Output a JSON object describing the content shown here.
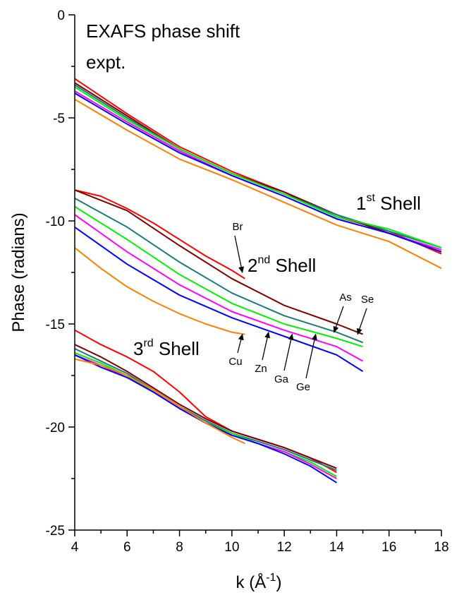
{
  "chart_data": {
    "type": "line",
    "title": "EXAFS phase shift",
    "subtitle": "expt.",
    "xlabel": "k (Å-1)",
    "xlabel_main": "k (Å",
    "xlabel_sup": "-1",
    "xlabel_end": ")",
    "ylabel": "Phase (radians)",
    "xlim": [
      4,
      18
    ],
    "ylim": [
      -25,
      0
    ],
    "x_ticks": [
      4,
      6,
      8,
      10,
      12,
      14,
      16,
      18
    ],
    "y_ticks": [
      0,
      -5,
      -10,
      -15,
      -20,
      -25
    ],
    "x_tick_labels": [
      "4",
      "6",
      "8",
      "10",
      "12",
      "14",
      "16",
      "18"
    ],
    "y_tick_labels": [
      "0",
      "-5",
      "-10",
      "-15",
      "-20",
      "-25"
    ],
    "grid": false,
    "element_colors": {
      "Br": "#ff0000",
      "Se": "#7b0000",
      "As": "#1a7a7a",
      "Ge": "#00ee00",
      "Ga": "#ff00ff",
      "Zn": "#0000ff",
      "Cu": "#ff8000"
    },
    "shells": [
      {
        "label": "1st Shell",
        "label_base": "1",
        "label_sup": "st",
        "label_rest": " Shell",
        "series": [
          {
            "element": "Br",
            "x": [
              4,
              6,
              8,
              10,
              12,
              14,
              16,
              18
            ],
            "y": [
              -3.1,
              -4.8,
              -6.4,
              -7.6,
              -8.6,
              -9.8,
              -10.5,
              -11.6
            ]
          },
          {
            "element": "Se",
            "x": [
              4,
              6,
              8,
              10,
              12,
              14,
              16,
              18
            ],
            "y": [
              -3.3,
              -4.9,
              -6.5,
              -7.7,
              -8.6,
              -9.7,
              -10.6,
              -11.5
            ]
          },
          {
            "element": "As",
            "x": [
              4,
              6,
              8,
              10,
              12,
              14,
              16,
              18
            ],
            "y": [
              -3.4,
              -5.0,
              -6.5,
              -7.7,
              -8.7,
              -9.7,
              -10.5,
              -11.3
            ]
          },
          {
            "element": "Ge",
            "x": [
              4,
              6,
              8,
              10,
              12,
              14,
              16,
              18
            ],
            "y": [
              -3.5,
              -5.1,
              -6.5,
              -7.7,
              -8.7,
              -9.8,
              -10.4,
              -11.3
            ]
          },
          {
            "element": "Ga",
            "x": [
              4,
              6,
              8,
              10,
              12,
              14,
              16,
              18
            ],
            "y": [
              -3.7,
              -5.2,
              -6.6,
              -7.8,
              -8.8,
              -9.9,
              -10.6,
              -11.4
            ]
          },
          {
            "element": "Zn",
            "x": [
              4,
              6,
              8,
              10,
              12,
              14,
              16,
              18
            ],
            "y": [
              -3.8,
              -5.3,
              -6.7,
              -7.8,
              -8.8,
              -9.9,
              -10.6,
              -11.5
            ]
          },
          {
            "element": "Cu",
            "x": [
              4,
              6,
              8,
              10,
              12,
              14,
              16,
              18
            ],
            "y": [
              -4.1,
              -5.6,
              -7.0,
              -8.0,
              -9.1,
              -10.2,
              -11.0,
              -12.3
            ]
          }
        ]
      },
      {
        "label": "2nd Shell",
        "label_base": "2",
        "label_sup": "nd",
        "label_rest": " Shell",
        "series": [
          {
            "element": "Br",
            "x": [
              4,
              5,
              6,
              7,
              8,
              9,
              10,
              10.5
            ],
            "y": [
              -8.5,
              -8.8,
              -9.4,
              -10.1,
              -10.9,
              -11.7,
              -12.4,
              -12.8
            ]
          },
          {
            "element": "Se",
            "x": [
              4,
              6,
              8,
              10,
              12,
              14,
              15
            ],
            "y": [
              -8.5,
              -9.5,
              -11.2,
              -12.8,
              -14.1,
              -15.0,
              -15.5
            ]
          },
          {
            "element": "As",
            "x": [
              4,
              6,
              8,
              10,
              12,
              14,
              15
            ],
            "y": [
              -8.9,
              -10.3,
              -12.0,
              -13.5,
              -14.6,
              -15.4,
              -15.9
            ]
          },
          {
            "element": "Ge",
            "x": [
              4,
              6,
              8,
              10,
              12,
              14,
              15
            ],
            "y": [
              -9.3,
              -10.9,
              -12.6,
              -14.0,
              -15.0,
              -15.7,
              -16.1
            ]
          },
          {
            "element": "Ga",
            "x": [
              4,
              6,
              8,
              10,
              12,
              14,
              15
            ],
            "y": [
              -9.7,
              -11.5,
              -13.1,
              -14.4,
              -15.3,
              -16.1,
              -16.8
            ]
          },
          {
            "element": "Zn",
            "x": [
              4,
              6,
              8,
              10,
              12,
              14,
              15
            ],
            "y": [
              -10.3,
              -12.1,
              -13.6,
              -14.7,
              -15.6,
              -16.5,
              -17.3
            ]
          },
          {
            "element": "Cu",
            "x": [
              4,
              5,
              6,
              7,
              8,
              9,
              10,
              10.5
            ],
            "y": [
              -11.3,
              -12.3,
              -13.2,
              -13.9,
              -14.5,
              -15.0,
              -15.4,
              -15.5
            ]
          }
        ]
      },
      {
        "label": "3rd Shell",
        "label_base": "3",
        "label_sup": "rd",
        "label_rest": " Shell",
        "series": [
          {
            "element": "Br",
            "x": [
              4,
              5,
              6,
              7,
              8,
              9,
              10,
              11,
              12,
              13,
              14
            ],
            "y": [
              -15.3,
              -16.0,
              -16.6,
              -17.3,
              -18.3,
              -19.5,
              -20.2,
              -20.6,
              -21.0,
              -21.5,
              -22.2
            ]
          },
          {
            "element": "Se",
            "x": [
              4,
              5,
              6,
              7,
              8,
              9,
              10,
              11,
              12,
              13,
              14
            ],
            "y": [
              -16.0,
              -16.6,
              -17.3,
              -18.1,
              -18.9,
              -19.6,
              -20.2,
              -20.6,
              -21.0,
              -21.5,
              -22.0
            ]
          },
          {
            "element": "As",
            "x": [
              4,
              5,
              6,
              7,
              8,
              9,
              10,
              11,
              12,
              13,
              14
            ],
            "y": [
              -16.2,
              -16.8,
              -17.4,
              -18.2,
              -19.0,
              -19.7,
              -20.3,
              -20.7,
              -21.1,
              -21.6,
              -22.1
            ]
          },
          {
            "element": "Ge",
            "x": [
              4,
              5,
              6,
              7,
              8,
              9,
              10,
              11,
              12,
              13,
              14
            ],
            "y": [
              -16.4,
              -16.9,
              -17.5,
              -18.3,
              -19.1,
              -19.8,
              -20.3,
              -20.8,
              -21.2,
              -21.7,
              -22.4
            ]
          },
          {
            "element": "Ga",
            "x": [
              4,
              5,
              6,
              7,
              8,
              9,
              10,
              11,
              12,
              13,
              14
            ],
            "y": [
              -16.5,
              -17.0,
              -17.6,
              -18.3,
              -19.1,
              -19.8,
              -20.4,
              -20.8,
              -21.2,
              -21.8,
              -22.5
            ]
          },
          {
            "element": "Zn",
            "x": [
              4,
              5,
              6,
              7,
              8,
              9,
              10,
              11,
              12,
              13,
              14
            ],
            "y": [
              -16.5,
              -17.1,
              -17.6,
              -18.3,
              -19.1,
              -19.8,
              -20.4,
              -20.8,
              -21.3,
              -21.9,
              -22.7
            ]
          },
          {
            "element": "Cu",
            "x": [
              4,
              5,
              6,
              7,
              8,
              9,
              10,
              10.5
            ],
            "y": [
              -16.7,
              -17.0,
              -17.5,
              -18.2,
              -19.0,
              -19.8,
              -20.5,
              -20.8
            ]
          }
        ]
      }
    ],
    "annotations": [
      {
        "text": "Br",
        "arrow_to": [
          10.4,
          -12.5
        ]
      },
      {
        "text": "Se",
        "arrow_to": [
          14.8,
          -15.5
        ]
      },
      {
        "text": "As",
        "arrow_to": [
          13.9,
          -15.4
        ]
      },
      {
        "text": "Cu",
        "arrow_to": [
          10.4,
          -15.5
        ]
      },
      {
        "text": "Zn",
        "arrow_to": [
          11.4,
          -15.4
        ]
      },
      {
        "text": "Ga",
        "arrow_to": [
          12.3,
          -15.5
        ]
      },
      {
        "text": "Ge",
        "arrow_to": [
          13.2,
          -15.5
        ]
      }
    ]
  }
}
